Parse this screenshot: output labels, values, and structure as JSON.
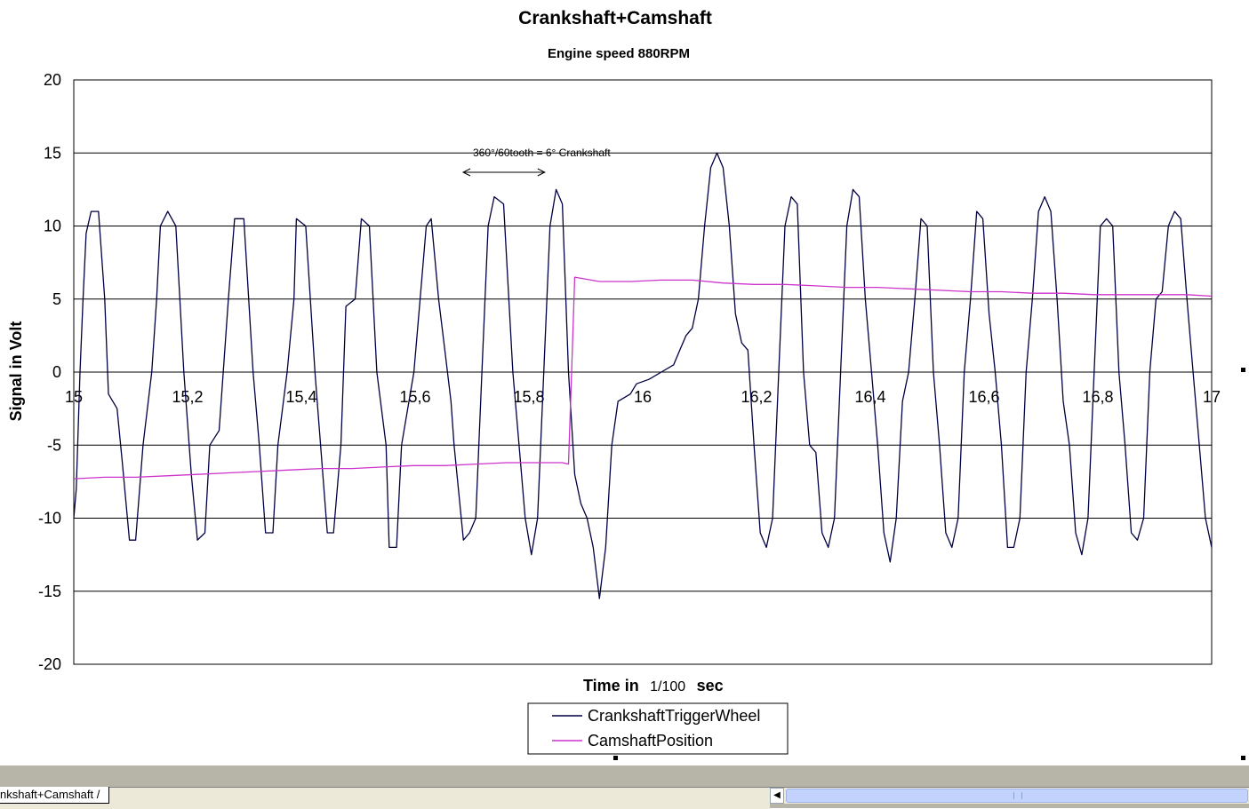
{
  "chart_data": {
    "type": "line",
    "title": "Crankshaft+Camshaft",
    "subtitle": "Engine speed  880RPM",
    "xlabel": "Time in",
    "xlabel_unit": "1/100",
    "xlabel_suffix": "sec",
    "ylabel": "Signal in Volt",
    "xlim": [
      15,
      17
    ],
    "ylim": [
      -20,
      20
    ],
    "x_ticks": [
      "15",
      "15,2",
      "15,4",
      "15,6",
      "15,8",
      "16",
      "16,2",
      "16,4",
      "16,6",
      "16,8",
      "17"
    ],
    "y_ticks": [
      "20",
      "15",
      "10",
      "5",
      "0",
      "-5",
      "-10",
      "-15",
      "-20"
    ],
    "grid": "horizontal",
    "annotation": "360°/60tooth = 6°   Crankshaft",
    "annotation_arrow_x": [
      15.7,
      15.82
    ],
    "legend": "bottom",
    "series": [
      {
        "name": "CrankshaftTriggerWheel",
        "color": "#000040",
        "points": [
          [
            15.0,
            -10.0
          ],
          [
            15.004,
            -8.0
          ],
          [
            15.01,
            0.0
          ],
          [
            15.015,
            5.0
          ],
          [
            15.02,
            9.5
          ],
          [
            15.028,
            11.0
          ],
          [
            15.04,
            11.0
          ],
          [
            15.05,
            5.0
          ],
          [
            15.056,
            -1.5
          ],
          [
            15.07,
            -2.5
          ],
          [
            15.078,
            -6.0
          ],
          [
            15.09,
            -11.5
          ],
          [
            15.1,
            -11.5
          ],
          [
            15.112,
            -5.0
          ],
          [
            15.126,
            0.0
          ],
          [
            15.134,
            5.0
          ],
          [
            15.14,
            10.0
          ],
          [
            15.152,
            11.0
          ],
          [
            15.165,
            10.0
          ],
          [
            15.178,
            0.0
          ],
          [
            15.19,
            -7.0
          ],
          [
            15.2,
            -11.5
          ],
          [
            15.212,
            -11.0
          ],
          [
            15.22,
            -5.0
          ],
          [
            15.235,
            -4.0
          ],
          [
            15.25,
            5.0
          ],
          [
            15.26,
            10.5
          ],
          [
            15.275,
            10.5
          ],
          [
            15.29,
            0.0
          ],
          [
            15.3,
            -5.0
          ],
          [
            15.31,
            -11.0
          ],
          [
            15.322,
            -11.0
          ],
          [
            15.33,
            -5.0
          ],
          [
            15.345,
            0.0
          ],
          [
            15.356,
            5.0
          ],
          [
            15.36,
            10.5
          ],
          [
            15.375,
            10.0
          ],
          [
            15.39,
            0.0
          ],
          [
            15.41,
            -11.0
          ],
          [
            15.42,
            -11.0
          ],
          [
            15.432,
            -5.0
          ],
          [
            15.44,
            4.5
          ],
          [
            15.455,
            5.0
          ],
          [
            15.465,
            10.5
          ],
          [
            15.478,
            10.0
          ],
          [
            15.49,
            0.0
          ],
          [
            15.505,
            -5.0
          ],
          [
            15.51,
            -12.0
          ],
          [
            15.522,
            -12.0
          ],
          [
            15.53,
            -5.0
          ],
          [
            15.55,
            0.0
          ],
          [
            15.56,
            5.0
          ],
          [
            15.57,
            10.0
          ],
          [
            15.578,
            10.5
          ],
          [
            15.59,
            5.0
          ],
          [
            15.6,
            1.5
          ],
          [
            15.61,
            -2.0
          ],
          [
            15.615,
            -5.0
          ],
          [
            15.63,
            -11.5
          ],
          [
            15.64,
            -11.0
          ],
          [
            15.65,
            -10.0
          ],
          [
            15.66,
            0.0
          ],
          [
            15.67,
            10.0
          ],
          [
            15.68,
            12.0
          ],
          [
            15.695,
            11.5
          ],
          [
            15.71,
            0.0
          ],
          [
            15.72,
            -5.0
          ],
          [
            15.73,
            -10.0
          ],
          [
            15.74,
            -12.5
          ],
          [
            15.75,
            -10.0
          ],
          [
            15.76,
            0.0
          ],
          [
            15.77,
            10.0
          ],
          [
            15.78,
            12.5
          ],
          [
            15.79,
            11.5
          ],
          [
            15.8,
            0.0
          ],
          [
            15.81,
            -7.0
          ],
          [
            15.82,
            -9.0
          ],
          [
            15.83,
            -10.0
          ],
          [
            15.84,
            -12.0
          ],
          [
            15.85,
            -15.5
          ],
          [
            15.86,
            -12.0
          ],
          [
            15.87,
            -5.0
          ],
          [
            15.88,
            -2.0
          ],
          [
            15.9,
            -1.5
          ],
          [
            15.91,
            -0.8
          ],
          [
            15.93,
            -0.5
          ],
          [
            15.95,
            0.0
          ],
          [
            15.97,
            0.5
          ],
          [
            15.98,
            1.5
          ],
          [
            15.99,
            2.5
          ],
          [
            16.0,
            3.0
          ],
          [
            16.01,
            5.0
          ],
          [
            16.02,
            10.0
          ],
          [
            16.03,
            14.0
          ],
          [
            16.04,
            15.0
          ],
          [
            16.05,
            14.0
          ],
          [
            16.06,
            10.0
          ],
          [
            16.07,
            4.0
          ],
          [
            16.08,
            2.0
          ],
          [
            16.09,
            1.5
          ],
          [
            16.1,
            -5.0
          ],
          [
            16.11,
            -11.0
          ],
          [
            16.12,
            -12.0
          ],
          [
            16.13,
            -10.0
          ],
          [
            16.14,
            0.0
          ],
          [
            16.15,
            10.0
          ],
          [
            16.16,
            12.0
          ],
          [
            16.17,
            11.5
          ],
          [
            16.18,
            0.0
          ],
          [
            16.19,
            -5.0
          ],
          [
            16.2,
            -5.5
          ],
          [
            16.21,
            -11.0
          ],
          [
            16.22,
            -12.0
          ],
          [
            16.23,
            -10.0
          ],
          [
            16.24,
            0.0
          ],
          [
            16.25,
            10.0
          ],
          [
            16.26,
            12.5
          ],
          [
            16.27,
            12.0
          ],
          [
            16.28,
            5.0
          ],
          [
            16.29,
            0.0
          ],
          [
            16.3,
            -5.0
          ],
          [
            16.31,
            -11.0
          ],
          [
            16.32,
            -13.0
          ],
          [
            16.33,
            -10.0
          ],
          [
            16.34,
            -2.0
          ],
          [
            16.35,
            0.0
          ],
          [
            16.36,
            5.0
          ],
          [
            16.37,
            10.5
          ],
          [
            16.38,
            10.0
          ],
          [
            16.39,
            0.0
          ],
          [
            16.4,
            -5.0
          ],
          [
            16.41,
            -11.0
          ],
          [
            16.42,
            -12.0
          ],
          [
            16.43,
            -10.0
          ],
          [
            16.44,
            0.0
          ],
          [
            16.45,
            5.0
          ],
          [
            16.46,
            11.0
          ],
          [
            16.47,
            10.5
          ],
          [
            16.48,
            4.0
          ],
          [
            16.49,
            0.0
          ],
          [
            16.5,
            -5.0
          ],
          [
            16.51,
            -12.0
          ],
          [
            16.52,
            -12.0
          ],
          [
            16.53,
            -10.0
          ],
          [
            16.54,
            0.0
          ],
          [
            16.55,
            5.0
          ],
          [
            16.56,
            11.0
          ],
          [
            16.57,
            12.0
          ],
          [
            16.58,
            11.0
          ],
          [
            16.59,
            5.0
          ],
          [
            16.6,
            -2.0
          ],
          [
            16.61,
            -5.0
          ],
          [
            16.62,
            -11.0
          ],
          [
            16.63,
            -12.5
          ],
          [
            16.64,
            -10.0
          ],
          [
            16.65,
            0.0
          ],
          [
            16.66,
            10.0
          ],
          [
            16.67,
            10.5
          ],
          [
            16.68,
            10.0
          ],
          [
            16.69,
            0.0
          ],
          [
            16.7,
            -5.0
          ],
          [
            16.71,
            -11.0
          ],
          [
            16.72,
            -11.5
          ],
          [
            16.73,
            -10.0
          ],
          [
            16.74,
            0.0
          ],
          [
            16.75,
            5.0
          ],
          [
            16.76,
            5.5
          ],
          [
            16.77,
            10.0
          ],
          [
            16.78,
            11.0
          ],
          [
            16.79,
            10.5
          ],
          [
            16.8,
            5.0
          ],
          [
            16.81,
            0.0
          ],
          [
            16.82,
            -5.0
          ],
          [
            16.83,
            -10.0
          ],
          [
            16.84,
            -12.0
          ]
        ]
      },
      {
        "name": "CamshaftPosition",
        "color": "#cc33cc",
        "points": [
          [
            15.0,
            -7.3
          ],
          [
            15.05,
            -7.2
          ],
          [
            15.1,
            -7.2
          ],
          [
            15.15,
            -7.1
          ],
          [
            15.2,
            -7.0
          ],
          [
            15.25,
            -6.9
          ],
          [
            15.3,
            -6.8
          ],
          [
            15.35,
            -6.7
          ],
          [
            15.4,
            -6.6
          ],
          [
            15.45,
            -6.6
          ],
          [
            15.5,
            -6.5
          ],
          [
            15.55,
            -6.4
          ],
          [
            15.6,
            -6.4
          ],
          [
            15.65,
            -6.3
          ],
          [
            15.7,
            -6.2
          ],
          [
            15.75,
            -6.2
          ],
          [
            15.79,
            -6.2
          ],
          [
            15.8,
            -6.3
          ],
          [
            15.805,
            0.0
          ],
          [
            15.81,
            6.5
          ],
          [
            15.85,
            6.2
          ],
          [
            15.9,
            6.2
          ],
          [
            15.95,
            6.3
          ],
          [
            16.0,
            6.3
          ],
          [
            16.05,
            6.1
          ],
          [
            16.1,
            6.0
          ],
          [
            16.15,
            6.0
          ],
          [
            16.2,
            5.9
          ],
          [
            16.25,
            5.8
          ],
          [
            16.3,
            5.8
          ],
          [
            16.35,
            5.7
          ],
          [
            16.4,
            5.6
          ],
          [
            16.45,
            5.5
          ],
          [
            16.5,
            5.5
          ],
          [
            16.55,
            5.4
          ],
          [
            16.6,
            5.4
          ],
          [
            16.65,
            5.3
          ],
          [
            16.7,
            5.3
          ],
          [
            16.75,
            5.3
          ],
          [
            16.8,
            5.3
          ],
          [
            16.84,
            5.2
          ]
        ]
      }
    ]
  },
  "sheet_tabs": {
    "active_label": "nkshaft+Camshaft /"
  }
}
